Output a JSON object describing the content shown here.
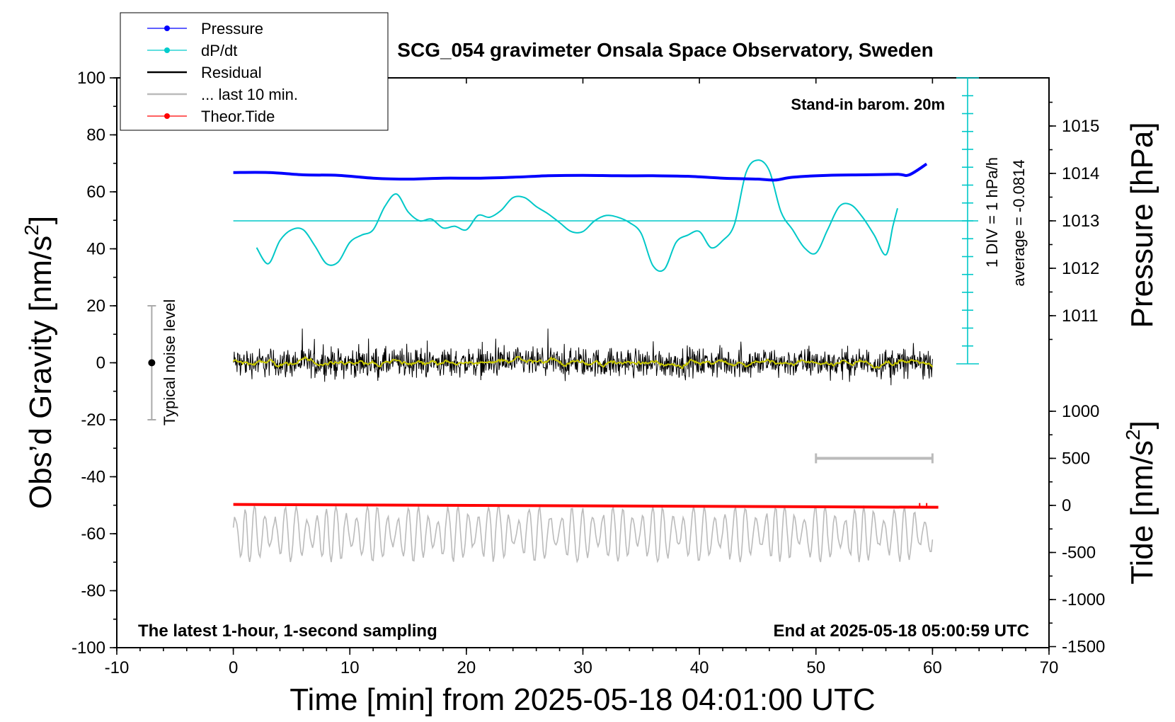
{
  "chart_data": {
    "type": "line",
    "title": "SCG_054 gravimeter Onsala Space Observatory, Sweden",
    "xlabel": "Time [min] from 2025-05-18 04:01:00 UTC",
    "ylabel_left": "Obs’d Gravity [nm/s",
    "ylabel_left_sup": "2",
    "ylabel_left_end": "]",
    "ylabel_right_top": "Pressure [hPa]",
    "ylabel_right_bottom": "Tide [nm/s",
    "ylabel_right_bottom_sup": "2",
    "ylabel_right_bottom_end": "]",
    "xlim": [
      -10,
      70
    ],
    "ylim_left": [
      -100,
      100
    ],
    "x_ticks": [
      -10,
      0,
      10,
      20,
      30,
      40,
      50,
      60,
      70
    ],
    "y_ticks_left": [
      100,
      80,
      60,
      40,
      20,
      0,
      -20,
      -40,
      -60,
      -80,
      -100
    ],
    "pressure_ticks": [
      1015,
      1014,
      1013,
      1012,
      1011
    ],
    "tide_ticks": [
      1000,
      500,
      0,
      -500,
      -1000,
      -1500
    ],
    "grid": false,
    "legend_position": "top-left",
    "legend": [
      {
        "label": "Pressure",
        "color": "#0000ff",
        "marker": "dot"
      },
      {
        "label": "dP/dt",
        "color": "#00cccc",
        "marker": "dot"
      },
      {
        "label": "Residual",
        "color": "#000000",
        "marker": "none"
      },
      {
        "label": "... last 10 min.",
        "color": "#bbbbbb",
        "marker": "none"
      },
      {
        "label": "Theor.Tide",
        "color": "#ff0000",
        "marker": "dot"
      }
    ],
    "annotations": {
      "stand_in": "Stand-in barom. 20m",
      "div_label": "1 DIV = 1 hPa/h",
      "average_label": "average = -0.0814",
      "noise_label": "Typical noise level",
      "bottom_left": "The latest 1-hour, 1-second sampling",
      "bottom_right": "End at 2025-05-18 05:00:59 UTC"
    },
    "colors": {
      "pressure": "#0000ff",
      "dpdt": "#00c8c8",
      "residual": "#000000",
      "residual_smooth": "#c8c800",
      "last10": "#bbbbbb",
      "tide": "#ff0000",
      "noise_bar": "#aaaaaa"
    },
    "dpdt_zero_hpa": 1013,
    "dpdt_scale_divisions": 16,
    "noise_level": {
      "x": -7,
      "y": 0,
      "ymin": -20,
      "ymax": 20
    },
    "last10_bar_x": [
      50,
      60
    ],
    "last10_bar_tide": 500,
    "series": [
      {
        "name": "Pressure",
        "unit": "hPa",
        "x": [
          0,
          3,
          6,
          9,
          12,
          15,
          18,
          21,
          24,
          27,
          30,
          33,
          36,
          39,
          42,
          45,
          46.5,
          48,
          51,
          54,
          57,
          58,
          59.5
        ],
        "values": [
          1014.02,
          1014.02,
          1013.97,
          1013.96,
          1013.9,
          1013.88,
          1013.9,
          1013.9,
          1013.92,
          1013.95,
          1013.96,
          1013.95,
          1013.95,
          1013.94,
          1013.9,
          1013.88,
          1013.86,
          1013.92,
          1013.96,
          1013.97,
          1013.98,
          1013.97,
          1014.2
        ]
      },
      {
        "name": "dP/dt",
        "unit": "hPa/h",
        "x": [
          2,
          3,
          4,
          5,
          6,
          7,
          8,
          9,
          10,
          11,
          12,
          13,
          14,
          15,
          16,
          17,
          18,
          19,
          20,
          21,
          22,
          23,
          24,
          25,
          26,
          27,
          28,
          29,
          30,
          31,
          32,
          33,
          34,
          35,
          36,
          37,
          38,
          39,
          40,
          41,
          42,
          43,
          44,
          45,
          46,
          47,
          48,
          49,
          50,
          51,
          52,
          53,
          54,
          55,
          56,
          56.6,
          57
        ],
        "values": [
          -1.5,
          -2.4,
          -1.1,
          -0.5,
          -0.5,
          -1.4,
          -2.4,
          -2.3,
          -1.2,
          -0.8,
          -0.5,
          0.8,
          1.5,
          0.5,
          0.0,
          0.1,
          -0.4,
          -0.3,
          -0.5,
          0.3,
          0.2,
          0.6,
          1.3,
          1.3,
          0.8,
          0.4,
          -0.1,
          -0.6,
          -0.6,
          0.0,
          0.3,
          0.2,
          -0.1,
          -0.7,
          -2.5,
          -2.7,
          -1.2,
          -0.8,
          -0.6,
          -1.5,
          -1.1,
          -0.2,
          2.7,
          3.4,
          2.8,
          0.5,
          -0.5,
          -1.5,
          -1.8,
          -0.5,
          0.8,
          0.9,
          0.2,
          -0.8,
          -1.9,
          -0.3,
          0.7
        ]
      },
      {
        "name": "Residual",
        "unit": "nm/s2",
        "x_range": [
          0,
          60
        ],
        "rms": 2.5,
        "range": [
          -12,
          12
        ]
      },
      {
        "name": "... last 10 min.",
        "unit": "nm/s2",
        "x_range": [
          0,
          60
        ],
        "center": -60,
        "amplitude": 10
      },
      {
        "name": "Theor.Tide",
        "unit": "nm/s2",
        "x": [
          0,
          60.5
        ],
        "values": [
          10,
          -20
        ]
      }
    ]
  }
}
